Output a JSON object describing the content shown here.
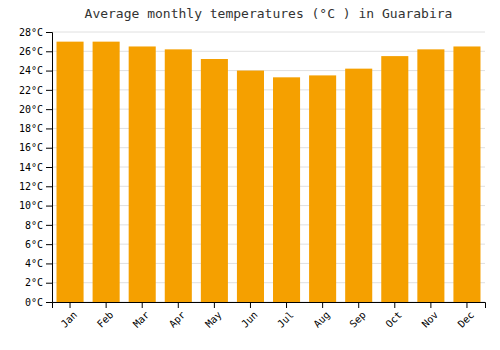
{
  "chart_data": {
    "type": "bar",
    "title": "Average monthly temperatures (°C ) in Guarabira",
    "categories": [
      "Jan",
      "Feb",
      "Mar",
      "Apr",
      "May",
      "Jun",
      "Jul",
      "Aug",
      "Sep",
      "Oct",
      "Nov",
      "Dec"
    ],
    "values": [
      27.0,
      27.0,
      26.5,
      26.2,
      25.2,
      24.0,
      23.3,
      23.5,
      24.2,
      25.5,
      26.2,
      26.5
    ],
    "color": "#F5A000",
    "ylim": [
      0,
      28
    ],
    "yticks": [
      {
        "value": 0,
        "label": "0°C"
      },
      {
        "value": 2,
        "label": "2°C"
      },
      {
        "value": 4,
        "label": "4°C"
      },
      {
        "value": 6,
        "label": "6°C"
      },
      {
        "value": 8,
        "label": "8°C"
      },
      {
        "value": 10,
        "label": "10°C"
      },
      {
        "value": 12,
        "label": "12°C"
      },
      {
        "value": 14,
        "label": "14°C"
      },
      {
        "value": 16,
        "label": "16°C"
      },
      {
        "value": 18,
        "label": "18°C"
      },
      {
        "value": 20,
        "label": "20°C"
      },
      {
        "value": 22,
        "label": "22°C"
      },
      {
        "value": 24,
        "label": "24°C"
      },
      {
        "value": 26,
        "label": "26°C"
      },
      {
        "value": 28,
        "label": "28°C"
      }
    ],
    "grid": true
  }
}
